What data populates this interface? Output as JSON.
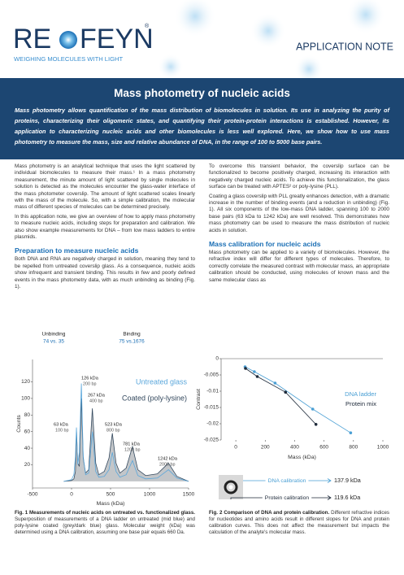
{
  "header": {
    "logo_left": "RE",
    "logo_right": "FEYN",
    "registered": "®",
    "tagline": "WEIGHING MOLECULES WITH LIGHT",
    "label": "APPLICATION NOTE"
  },
  "title": "Mass photometry of nucleic acids",
  "abstract": "Mass photometry allows quantification of the mass distribution of biomolecules in solution. Its use in analyzing the purity of proteins, characterizing their oligomeric states, and quantifying their protein-protein interactions is established. However, its application to characterizing nucleic acids and other biomolecules is less well explored. Here, we show how to use mass photometry to measure the mass, size and relative abundance of DNA, in the range of 100 to 5000 base pairs.",
  "left_column": {
    "paragraphs": [
      "Mass photometry is an analytical technique that uses the light scattered by individual biomolecules to measure their mass.¹ In a mass photometry measurement, the minute amount of light scattered by single molecules in solution is detected as the molecules encounter the glass-water interface of the mass photometer coverslip. The amount of light scattered scales linearly with the mass of the molecule. So, with a simple calibration, the molecular mass of different species of molecules can be determined precisely.",
      "In this application note, we give an overview of how to apply mass photometry to measure nucleic acids, including steps for preparation and calibration. We also show example measurements for DNA – from low mass ladders to entire plasmids."
    ],
    "heading": "Preparation to measure nucleic acids",
    "paragraphs_after": [
      "Both DNA and RNA are negatively charged in solution, meaning they tend to be repelled from untreated coverslip glass. As a consequence, nucleic acids show infrequent and transient binding. This results in few and poorly defined events in the mass photometry data, with as much unbinding as binding (Fig. 1)."
    ]
  },
  "right_column": {
    "paragraphs": [
      "To overcome this transient behavior, the coverslip surface can be functionalized to become positively charged, increasing its interaction with negatively charged nucleic acids. To achieve this functionalization, the glass surface can be treated with APTES² or poly-lysine (PLL).",
      "Coating a glass coverslip with PLL greatly enhances detection, with a dramatic increase in the number of binding events (and a reduction in unbinding) (Fig. 1). All six components of the low-mass DNA ladder, spanning 100 to 2000 base pairs (63 kDa to 1242 kDa) are well resolved. This demonstrates how mass photometry can be used to measure the mass distribution of nucleic acids in solution."
    ],
    "heading": "Mass calibration for nucleic acids",
    "paragraphs_after": [
      "Mass photometry can be applied to a variety of biomolecules. However, the refractive index will differ for different types of molecules. Therefore, to correctly correlate the measured contrast with molecular mass, an appropriate calibration should be conducted, using molecules of known mass and the same molecular class as"
    ]
  },
  "chart_data": [
    {
      "type": "area-line",
      "x_label": "Mass (kDa)",
      "y_label": "Counts",
      "x": [
        -100,
        0,
        30,
        50,
        63,
        80,
        100,
        126,
        150,
        180,
        220,
        267,
        310,
        350,
        420,
        480,
        523,
        570,
        620,
        700,
        781,
        850,
        950,
        1100,
        1242,
        1350,
        1500
      ],
      "series": [
        {
          "name": "Untreated glass",
          "color": "#5aa7db",
          "values": [
            0,
            2,
            8,
            30,
            65,
            20,
            35,
            118,
            30,
            8,
            10,
            60,
            12,
            5,
            6,
            14,
            35,
            12,
            5,
            8,
            25,
            7,
            3,
            4,
            14,
            4,
            0
          ]
        },
        {
          "name": "Coated (poly-lysine)",
          "color": "#34495e",
          "fill": "#c3c6c9",
          "values": [
            0,
            1,
            3,
            12,
            62,
            22,
            18,
            100,
            28,
            10,
            14,
            88,
            22,
            8,
            12,
            28,
            58,
            22,
            10,
            16,
            42,
            14,
            7,
            9,
            22,
            6,
            0
          ]
        }
      ],
      "xlim": [
        -500,
        1500
      ],
      "xticks": [
        -500,
        0,
        500,
        1000,
        1500
      ],
      "ylim": [
        -8,
        147
      ],
      "yticks": [
        20,
        40,
        60,
        80,
        100,
        120
      ],
      "annotations": [
        {
          "text": "126 kDa",
          "sub": "200 bp"
        },
        {
          "text": "267 kDa",
          "sub": "400 bp"
        },
        {
          "text": "63 kDa",
          "sub": "100 bp"
        },
        {
          "text": "523 kDa",
          "sub": "800 bp"
        },
        {
          "text": "781 kDa",
          "sub": "1200 bp"
        },
        {
          "text": "1242 kDa",
          "sub": "2000 bp"
        }
      ],
      "event_counts": [
        {
          "label": "Unbinding",
          "value": "74 vs. 35"
        },
        {
          "label": "Binding",
          "value": "75 vs.1676"
        }
      ]
    },
    {
      "type": "scatter-line",
      "x_label": "Mass (kDa)",
      "y_label": "Contrast",
      "series": [
        {
          "name": "DNA ladder",
          "color": "#4a9fd4",
          "x": [
            63,
            126,
            267,
            523,
            781
          ],
          "values": [
            -0.0025,
            -0.004,
            -0.0075,
            -0.0155,
            -0.0228
          ]
        },
        {
          "name": "Protein mix",
          "color": "#1e2a3a",
          "x": [
            66,
            146,
            338,
            545
          ],
          "values": [
            -0.003,
            -0.0055,
            -0.0103,
            -0.0202
          ]
        }
      ],
      "xlim": [
        -100,
        1000
      ],
      "xticks": [
        0,
        200,
        400,
        600,
        800,
        1000
      ],
      "ylim": [
        -0.025,
        0
      ],
      "yticks": [
        0,
        -0.005,
        -0.01,
        -0.015,
        -0.02,
        -0.025
      ]
    }
  ],
  "calibration_diagram": [
    {
      "label": "DNA calibration",
      "result": "137.9 kDa",
      "color": "#4a9fd4"
    },
    {
      "label": "Protein calibration",
      "result": "119.6 kDa",
      "color": "#1e2a3a"
    }
  ],
  "captions": [
    {
      "bold": "Fig. 1 Measurements of nucleic acids on untreated vs. functionalized glass.",
      "text": "Superposition of measurements of a DNA ladder on untreated (mid blue) and poly-lysine coated (grey/dark blue) glass. Molecular weight (kDa) was determined using a DNA calibration, assuming one base pair equals 660 Da."
    },
    {
      "bold": "Fig. 2 Comparison of DNA and protein calibration.",
      "text": "Different refractive indices for nucleotides and amino acids result in different slopes for DNA and protein calibration curves. This does not affect the measurement but impacts the calculation of the analyte's molecular mass."
    }
  ]
}
